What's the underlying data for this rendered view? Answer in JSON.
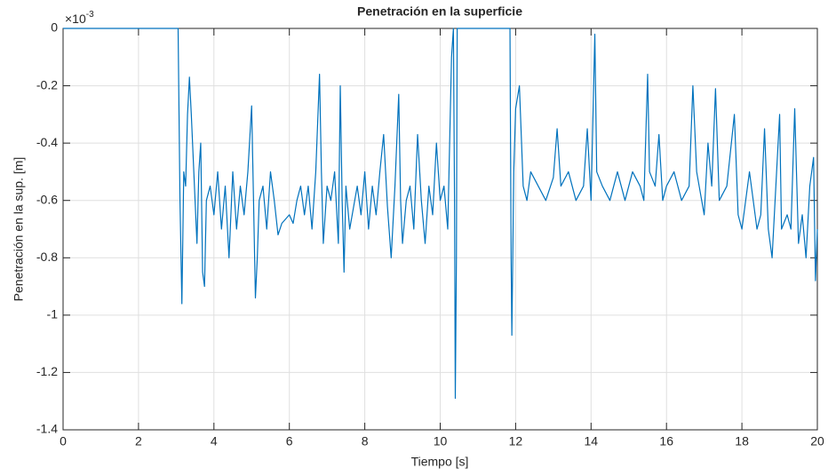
{
  "chart_data": {
    "type": "line",
    "title": "Penetración en la superficie",
    "xlabel": "Tiempo [s]",
    "ylabel": "Penetración en la sup. [m]",
    "y_exponent_base": "×10",
    "y_exponent_power": "-3",
    "xlim": [
      0,
      20
    ],
    "ylim": [
      -1.4,
      0
    ],
    "xticks": [
      0,
      2,
      4,
      6,
      8,
      10,
      12,
      14,
      16,
      18,
      20
    ],
    "yticks": [
      -1.4,
      -1.2,
      -1,
      -0.8,
      -0.6,
      -0.4,
      -0.2,
      0
    ],
    "grid": true,
    "series": [
      {
        "color": "#0072bd",
        "x": [
          0,
          3.05,
          3.1,
          3.15,
          3.2,
          3.25,
          3.3,
          3.35,
          3.4,
          3.5,
          3.55,
          3.6,
          3.65,
          3.7,
          3.75,
          3.8,
          3.9,
          4.0,
          4.1,
          4.2,
          4.3,
          4.4,
          4.5,
          4.6,
          4.7,
          4.8,
          4.9,
          5.0,
          5.05,
          5.1,
          5.15,
          5.2,
          5.3,
          5.4,
          5.5,
          5.6,
          5.7,
          5.8,
          6.0,
          6.1,
          6.2,
          6.3,
          6.4,
          6.5,
          6.6,
          6.7,
          6.8,
          6.85,
          6.9,
          7.0,
          7.1,
          7.2,
          7.3,
          7.35,
          7.4,
          7.45,
          7.5,
          7.6,
          7.8,
          7.9,
          8.0,
          8.1,
          8.2,
          8.3,
          8.4,
          8.5,
          8.6,
          8.7,
          8.8,
          8.9,
          8.95,
          9.0,
          9.1,
          9.2,
          9.3,
          9.4,
          9.5,
          9.6,
          9.7,
          9.8,
          9.9,
          10.0,
          10.1,
          10.2,
          10.3,
          10.35,
          10.38,
          10.4,
          10.43,
          10.45,
          10.5,
          11.85,
          11.88,
          11.9,
          11.95,
          12.0,
          12.1,
          12.2,
          12.3,
          12.4,
          12.6,
          12.8,
          13.0,
          13.1,
          13.2,
          13.4,
          13.6,
          13.8,
          13.9,
          14.0,
          14.1,
          14.15,
          14.3,
          14.5,
          14.7,
          14.9,
          15.1,
          15.3,
          15.4,
          15.5,
          15.55,
          15.7,
          15.8,
          15.9,
          16.0,
          16.2,
          16.4,
          16.6,
          16.7,
          16.8,
          17.0,
          17.1,
          17.2,
          17.3,
          17.4,
          17.6,
          17.8,
          17.9,
          18.0,
          18.2,
          18.4,
          18.5,
          18.6,
          18.7,
          18.8,
          18.9,
          19.0,
          19.05,
          19.2,
          19.3,
          19.4,
          19.5,
          19.6,
          19.7,
          19.8,
          19.9,
          19.95,
          20.0
        ],
        "values": [
          0,
          0,
          -0.6,
          -0.96,
          -0.5,
          -0.55,
          -0.3,
          -0.17,
          -0.3,
          -0.6,
          -0.75,
          -0.5,
          -0.4,
          -0.85,
          -0.9,
          -0.6,
          -0.55,
          -0.65,
          -0.5,
          -0.7,
          -0.55,
          -0.8,
          -0.5,
          -0.7,
          -0.55,
          -0.65,
          -0.5,
          -0.27,
          -0.6,
          -0.94,
          -0.8,
          -0.6,
          -0.55,
          -0.7,
          -0.5,
          -0.6,
          -0.72,
          -0.68,
          -0.65,
          -0.68,
          -0.6,
          -0.55,
          -0.65,
          -0.55,
          -0.7,
          -0.5,
          -0.16,
          -0.5,
          -0.75,
          -0.55,
          -0.6,
          -0.5,
          -0.75,
          -0.2,
          -0.6,
          -0.85,
          -0.55,
          -0.7,
          -0.55,
          -0.65,
          -0.5,
          -0.7,
          -0.55,
          -0.65,
          -0.5,
          -0.37,
          -0.62,
          -0.8,
          -0.55,
          -0.23,
          -0.6,
          -0.75,
          -0.6,
          -0.55,
          -0.7,
          -0.37,
          -0.6,
          -0.75,
          -0.55,
          -0.65,
          -0.4,
          -0.6,
          -0.55,
          -0.7,
          -0.1,
          0,
          -0.6,
          -1.29,
          -0.8,
          0,
          0,
          0,
          -0.8,
          -1.07,
          -0.5,
          -0.28,
          -0.2,
          -0.55,
          -0.6,
          -0.5,
          -0.55,
          -0.6,
          -0.52,
          -0.35,
          -0.55,
          -0.5,
          -0.6,
          -0.55,
          -0.35,
          -0.6,
          -0.02,
          -0.5,
          -0.55,
          -0.6,
          -0.5,
          -0.6,
          -0.5,
          -0.55,
          -0.6,
          -0.16,
          -0.5,
          -0.55,
          -0.37,
          -0.6,
          -0.55,
          -0.5,
          -0.6,
          -0.55,
          -0.2,
          -0.5,
          -0.65,
          -0.4,
          -0.55,
          -0.21,
          -0.6,
          -0.55,
          -0.3,
          -0.65,
          -0.7,
          -0.5,
          -0.7,
          -0.65,
          -0.35,
          -0.7,
          -0.8,
          -0.55,
          -0.3,
          -0.7,
          -0.65,
          -0.7,
          -0.28,
          -0.75,
          -0.65,
          -0.8,
          -0.55,
          -0.45,
          -0.88,
          -0.7
        ]
      }
    ]
  }
}
